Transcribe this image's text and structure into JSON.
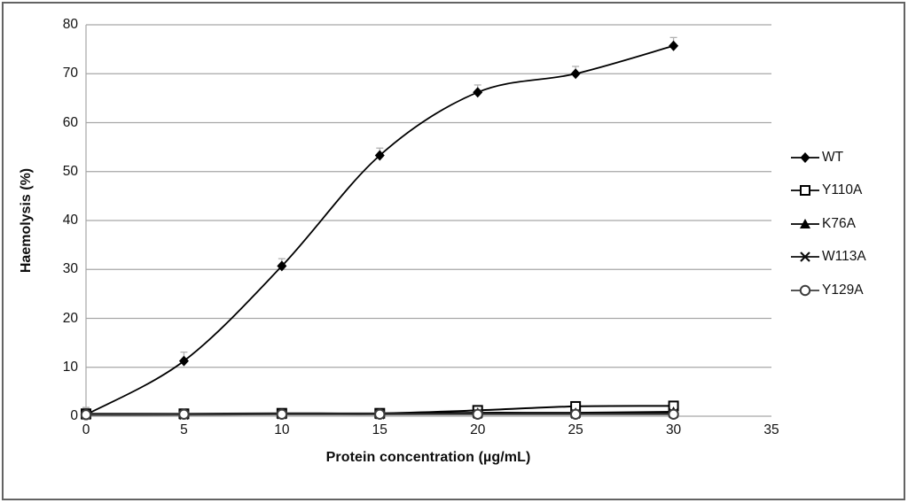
{
  "figure": {
    "background": "#ffffff",
    "frame_color": "#636363"
  },
  "chart_data": {
    "type": "line",
    "title": "",
    "xlabel": "Protein concentration (µg/mL)",
    "ylabel": "Haemolysis (%)",
    "xlim": [
      0,
      35
    ],
    "ylim": [
      0,
      80
    ],
    "x_ticks": [
      0,
      5,
      10,
      15,
      20,
      25,
      30,
      35
    ],
    "y_ticks": [
      0,
      10,
      20,
      30,
      40,
      50,
      60,
      70,
      80
    ],
    "grid": "horizontal",
    "gridline_color": "#a6a6a6",
    "error_bar_color": "#b0b0b0",
    "legend_position": "right",
    "smooth_lines": true,
    "x": [
      0,
      5,
      10,
      15,
      20,
      25,
      30
    ],
    "series": [
      {
        "name": "WT",
        "marker": "diamond-filled",
        "color": "#000000",
        "line_width": 1.8,
        "values": [
          0.3,
          11.3,
          30.7,
          53.3,
          66.2,
          70.0,
          75.7
        ],
        "error_up": [
          1.5,
          1.8,
          1.5,
          1.5,
          1.5,
          1.5,
          1.7
        ]
      },
      {
        "name": "Y110A",
        "marker": "square-open",
        "color": "#000000",
        "line_width": 2.0,
        "values": [
          0.5,
          0.5,
          0.6,
          0.6,
          1.2,
          2.0,
          2.1
        ],
        "error_up": [
          1.2,
          0.8,
          0.8,
          0.8,
          0.8,
          0.7,
          0.7
        ]
      },
      {
        "name": "K76A",
        "marker": "triangle-filled",
        "color": "#000000",
        "line_width": 2.0,
        "values": [
          0.3,
          0.4,
          0.5,
          0.5,
          0.7,
          0.7,
          0.9
        ],
        "error_up": [
          0.3,
          0.3,
          0.3,
          0.3,
          0.3,
          0.3,
          0.3
        ]
      },
      {
        "name": "W113A",
        "marker": "x-cross",
        "color": "#0d0d0d",
        "line_width": 2.0,
        "values": [
          0.3,
          0.3,
          0.4,
          0.4,
          0.5,
          0.5,
          0.6
        ],
        "error_up": [
          0.2,
          0.2,
          0.2,
          0.2,
          0.2,
          0.2,
          0.2
        ]
      },
      {
        "name": "Y129A",
        "marker": "circle-open",
        "color": "#3d3d3d",
        "line_width": 2.0,
        "values": [
          0.3,
          0.4,
          0.4,
          0.4,
          0.4,
          0.4,
          0.4
        ],
        "error_up": [
          0.9,
          0.9,
          0.9,
          0.9,
          0.9,
          0.9,
          0.5
        ]
      }
    ]
  }
}
